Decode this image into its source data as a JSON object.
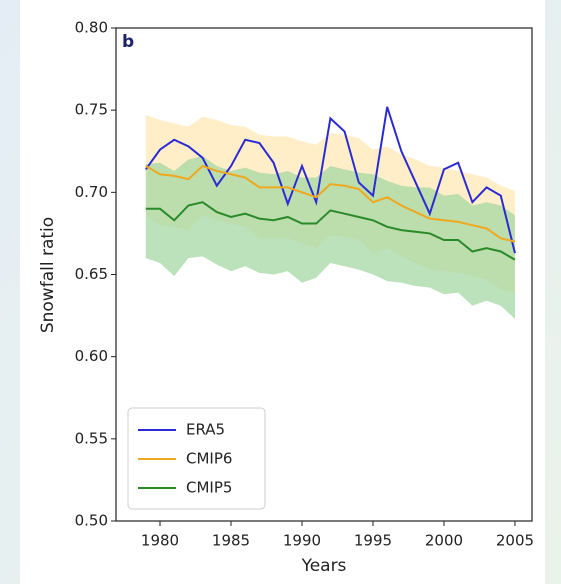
{
  "chart_data": {
    "type": "line",
    "panel_label": "b",
    "x_label": "Years",
    "y_label": "Snowfall ratio",
    "x": [
      1979,
      1980,
      1981,
      1982,
      1983,
      1984,
      1985,
      1986,
      1987,
      1988,
      1989,
      1990,
      1991,
      1992,
      1993,
      1994,
      1995,
      1996,
      1997,
      1998,
      1999,
      2000,
      2001,
      2002,
      2003,
      2004,
      2005
    ],
    "series": [
      {
        "name": "ERA5",
        "color": "#2b2bd4",
        "values": [
          0.714,
          0.726,
          0.732,
          0.728,
          0.721,
          0.704,
          0.716,
          0.732,
          0.73,
          0.718,
          0.693,
          0.716,
          0.694,
          0.745,
          0.737,
          0.706,
          0.698,
          0.752,
          0.725,
          0.706,
          0.687,
          0.714,
          0.718,
          0.694,
          0.703,
          0.698,
          0.663
        ]
      },
      {
        "name": "CMIP6",
        "color": "#f0a81e",
        "band_color": "#ffe7b0",
        "values": [
          0.716,
          0.711,
          0.71,
          0.708,
          0.716,
          0.713,
          0.711,
          0.709,
          0.703,
          0.703,
          0.703,
          0.7,
          0.697,
          0.705,
          0.704,
          0.702,
          0.694,
          0.697,
          0.692,
          0.688,
          0.684,
          0.683,
          0.682,
          0.68,
          0.678,
          0.672,
          0.67
        ],
        "upper": [
          0.747,
          0.744,
          0.742,
          0.74,
          0.746,
          0.744,
          0.741,
          0.74,
          0.735,
          0.734,
          0.734,
          0.731,
          0.729,
          0.736,
          0.735,
          0.733,
          0.726,
          0.728,
          0.723,
          0.72,
          0.716,
          0.715,
          0.713,
          0.711,
          0.709,
          0.704,
          0.701
        ],
        "lower": [
          0.686,
          0.68,
          0.679,
          0.677,
          0.686,
          0.683,
          0.681,
          0.679,
          0.672,
          0.672,
          0.672,
          0.669,
          0.666,
          0.674,
          0.673,
          0.671,
          0.663,
          0.666,
          0.661,
          0.657,
          0.653,
          0.652,
          0.651,
          0.649,
          0.647,
          0.641,
          0.639
        ]
      },
      {
        "name": "CMIP5",
        "color": "#2a8a2a",
        "band_color": "#9fd6a0",
        "values": [
          0.69,
          0.69,
          0.683,
          0.692,
          0.694,
          0.688,
          0.685,
          0.687,
          0.684,
          0.683,
          0.685,
          0.681,
          0.681,
          0.689,
          0.687,
          0.685,
          0.683,
          0.679,
          0.677,
          0.676,
          0.675,
          0.671,
          0.671,
          0.664,
          0.666,
          0.664,
          0.659
        ],
        "upper": [
          0.717,
          0.718,
          0.713,
          0.72,
          0.722,
          0.716,
          0.713,
          0.715,
          0.712,
          0.711,
          0.713,
          0.709,
          0.709,
          0.716,
          0.714,
          0.712,
          0.711,
          0.707,
          0.704,
          0.703,
          0.703,
          0.698,
          0.699,
          0.692,
          0.694,
          0.692,
          0.686
        ],
        "lower": [
          0.66,
          0.657,
          0.649,
          0.66,
          0.661,
          0.656,
          0.652,
          0.655,
          0.651,
          0.65,
          0.652,
          0.645,
          0.648,
          0.657,
          0.655,
          0.653,
          0.65,
          0.646,
          0.645,
          0.643,
          0.642,
          0.638,
          0.639,
          0.631,
          0.634,
          0.631,
          0.623
        ]
      }
    ],
    "xlim": [
      1976.9,
      2006.2
    ],
    "xticks": [
      1980,
      1985,
      1990,
      1995,
      2000,
      2005
    ],
    "ylim": [
      0.5,
      0.8
    ],
    "yticks": [
      {
        "value": 0.5,
        "label": "0.50"
      },
      0.55,
      {
        "value": 0.6,
        "label": "0.60"
      },
      0.65,
      {
        "value": 0.7,
        "label": "0.70"
      },
      0.75,
      {
        "value": 0.8,
        "label": "0.80"
      }
    ],
    "legend": "lower left"
  }
}
